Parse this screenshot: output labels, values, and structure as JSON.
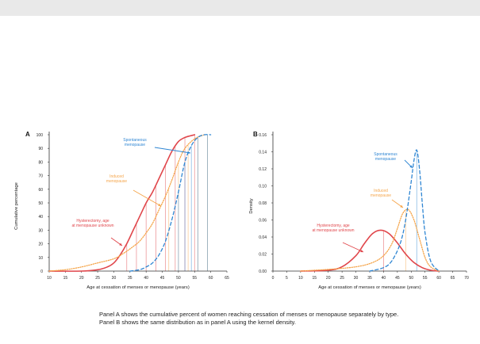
{
  "caption": {
    "line1": "Panel A shows the cumulative percent of women reaching cessation of menses or menopause separately by type.",
    "line2": "Panel B shows the same distribution as in panel A using the kernel density."
  },
  "colors": {
    "hysterectomy": "#e0464b",
    "induced": "#f5a54a",
    "spontaneous": "#2f86d3",
    "axis": "#333333"
  },
  "chart_data": [
    {
      "type": "line",
      "panel_label": "A",
      "ylabel": "Cumulative percentage",
      "xlabel": "Age at cessation of menses or menopause (years)",
      "xlim": [
        10,
        65
      ],
      "ylim": [
        0,
        100
      ],
      "xticks": [
        10,
        15,
        20,
        25,
        30,
        35,
        40,
        45,
        50,
        55,
        60,
        65
      ],
      "yticks": [
        0,
        10,
        20,
        30,
        40,
        50,
        60,
        70,
        80,
        90,
        100
      ],
      "series": [
        {
          "name": "Hysterectomy, age at menopause unknown",
          "style": "solid",
          "color": "#e0464b",
          "x": [
            10,
            20,
            25,
            28,
            30,
            32,
            34,
            36,
            38,
            40,
            42,
            44,
            46,
            48,
            50,
            52,
            55
          ],
          "y": [
            0,
            0,
            1,
            3,
            6,
            12,
            20,
            30,
            40,
            50,
            58,
            68,
            78,
            88,
            95,
            98,
            100
          ]
        },
        {
          "name": "Induced menopause",
          "style": "dotted",
          "color": "#f5a54a",
          "x": [
            10,
            15,
            20,
            25,
            30,
            33,
            36,
            38,
            40,
            42,
            44,
            46,
            48,
            50,
            52,
            55,
            58
          ],
          "y": [
            0,
            1,
            3,
            6,
            9,
            13,
            18,
            22,
            28,
            35,
            45,
            55,
            67,
            80,
            90,
            97,
            100
          ]
        },
        {
          "name": "Spontaneous menopause",
          "style": "dashed",
          "color": "#2f86d3",
          "x": [
            35,
            38,
            40,
            42,
            44,
            46,
            48,
            50,
            52,
            54,
            56,
            58,
            60
          ],
          "y": [
            0,
            1,
            3,
            6,
            12,
            22,
            38,
            58,
            80,
            92,
            98,
            100,
            100
          ]
        }
      ],
      "annotations": [
        {
          "text": "Spontaneous menopause",
          "color": "#2f86d3"
        },
        {
          "text": "Induced menopause",
          "color": "#f5a54a"
        },
        {
          "text": "Hysterectomy, age at menopause unknown",
          "color": "#e0464b"
        }
      ]
    },
    {
      "type": "line",
      "panel_label": "B",
      "ylabel": "Density",
      "xlabel": "Age at cessation of menses or menopause (years)",
      "xlim": [
        0,
        70
      ],
      "ylim": [
        0,
        0.16
      ],
      "xticks": [
        0,
        5,
        10,
        15,
        20,
        25,
        30,
        35,
        40,
        45,
        50,
        55,
        60,
        65,
        70
      ],
      "yticks": [
        0.0,
        0.02,
        0.04,
        0.06,
        0.08,
        0.1,
        0.12,
        0.14,
        0.16
      ],
      "series": [
        {
          "name": "Hysterectomy, age at menopause unknown",
          "style": "solid",
          "color": "#e0464b",
          "x": [
            10,
            20,
            25,
            30,
            33,
            36,
            39,
            42,
            45,
            48,
            51,
            54,
            57,
            60
          ],
          "y": [
            0,
            0.001,
            0.005,
            0.018,
            0.032,
            0.044,
            0.048,
            0.044,
            0.033,
            0.02,
            0.01,
            0.004,
            0.001,
            0
          ]
        },
        {
          "name": "Induced menopause",
          "style": "dotted",
          "color": "#f5a54a",
          "x": [
            10,
            20,
            30,
            36,
            40,
            43,
            45,
            47,
            49,
            51,
            53,
            55,
            57,
            60
          ],
          "y": [
            0,
            0.002,
            0.005,
            0.01,
            0.018,
            0.032,
            0.05,
            0.068,
            0.072,
            0.06,
            0.038,
            0.016,
            0.005,
            0
          ]
        },
        {
          "name": "Spontaneous menopause",
          "style": "dashed",
          "color": "#2f86d3",
          "x": [
            35,
            40,
            43,
            46,
            48,
            50,
            51,
            52,
            53,
            54,
            55,
            57,
            60
          ],
          "y": [
            0,
            0.004,
            0.012,
            0.032,
            0.06,
            0.105,
            0.13,
            0.142,
            0.12,
            0.08,
            0.045,
            0.012,
            0
          ]
        }
      ],
      "annotations": [
        {
          "text": "Spontaneous menopause",
          "color": "#2f86d3"
        },
        {
          "text": "Induced menopause",
          "color": "#f5a54a"
        },
        {
          "text": "Hysterectomy, age at menopause unknown",
          "color": "#e0464b"
        }
      ]
    }
  ]
}
